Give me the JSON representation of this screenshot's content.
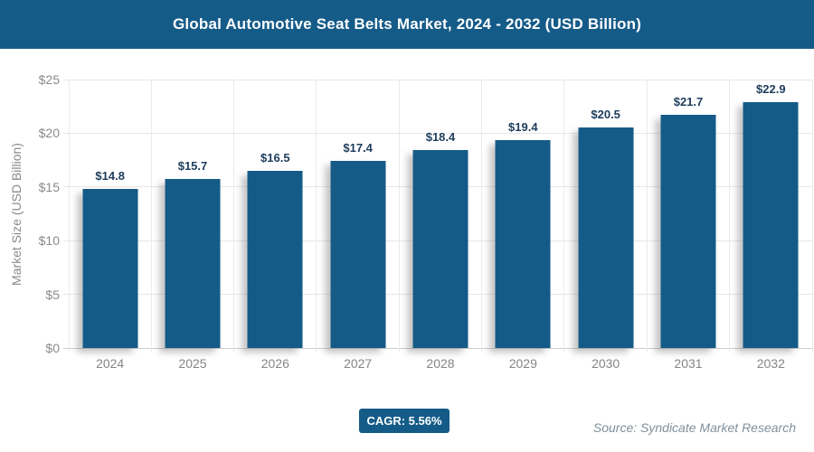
{
  "header": {
    "title": "Global Automotive Seat Belts Market, 2024 - 2032 (USD Billion)"
  },
  "chart_data": {
    "type": "bar",
    "title": "Global Automotive Seat Belts Market, 2024 - 2032 (USD Billion)",
    "categories": [
      "2024",
      "2025",
      "2026",
      "2027",
      "2028",
      "2029",
      "2030",
      "2031",
      "2032"
    ],
    "values": [
      14.8,
      15.7,
      16.5,
      17.4,
      18.4,
      19.4,
      20.5,
      21.7,
      22.9
    ],
    "data_labels": [
      "$14.8",
      "$15.7",
      "$16.5",
      "$17.4",
      "$18.4",
      "$19.4",
      "$20.5",
      "$21.7",
      "$22.9"
    ],
    "xlabel": "",
    "ylabel": "Market Size (USD Billion)",
    "ylim": [
      0,
      25
    ],
    "yticks": [
      {
        "value": 0,
        "label": "$0"
      },
      {
        "value": 5,
        "label": "$5"
      },
      {
        "value": 10,
        "label": "$10"
      },
      {
        "value": 15,
        "label": "$15"
      },
      {
        "value": 20,
        "label": "$20"
      },
      {
        "value": 25,
        "label": "$25"
      }
    ],
    "grid": true,
    "legend": false
  },
  "footer": {
    "cagr_label": "CAGR: 5.56%",
    "source": "Source: Syndicate Market Research"
  },
  "colors": {
    "accent_blue": "#155b88",
    "label_navy": "#1e3c5c",
    "axis_gray": "#8a8a8a",
    "gridline": "#e6e6e6"
  }
}
